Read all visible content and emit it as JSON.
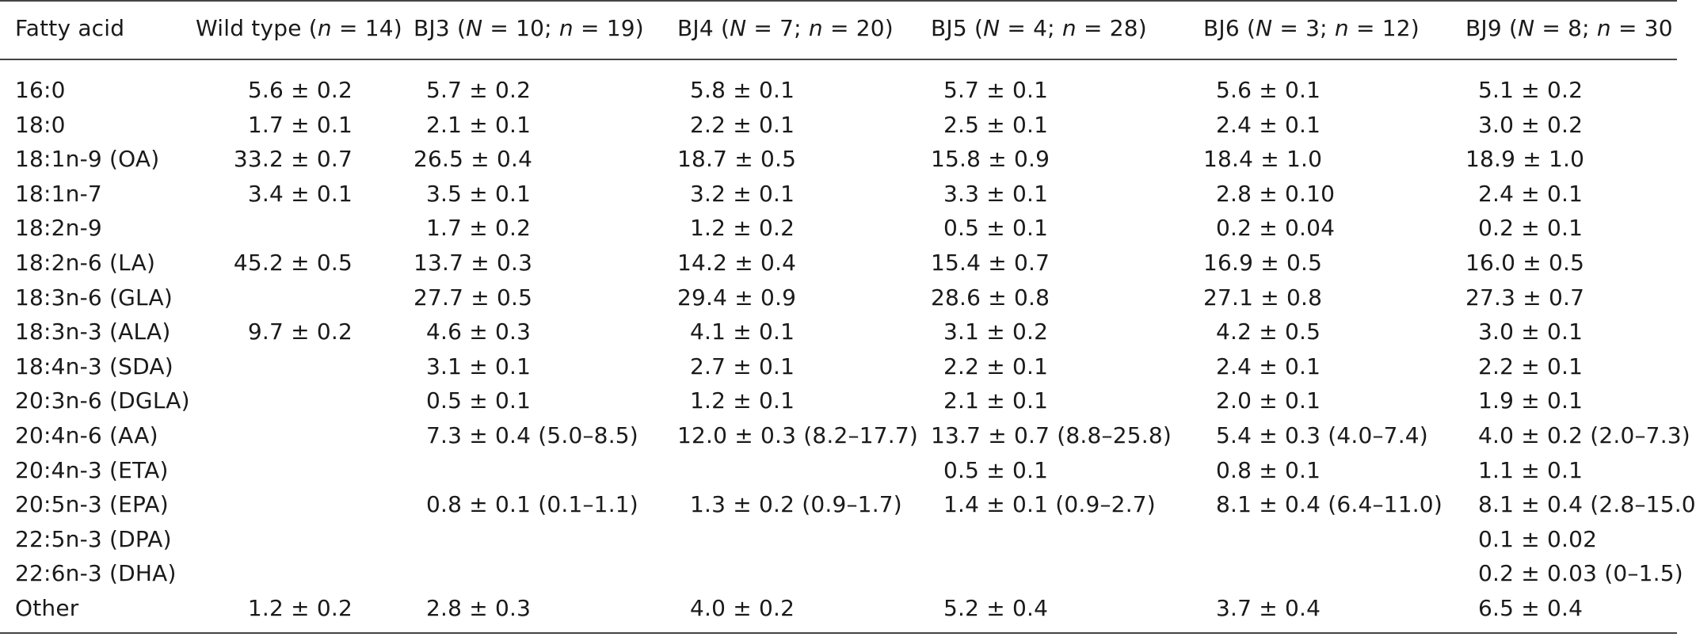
{
  "table": {
    "headers": [
      {
        "prefix": "Fatty acid",
        "parts": []
      },
      {
        "prefix": "Wild type (",
        "parts": [
          {
            "i": "n"
          },
          {
            "t": " = 14)"
          }
        ]
      },
      {
        "prefix": "BJ3 (",
        "parts": [
          {
            "i": "N"
          },
          {
            "t": " = 10; "
          },
          {
            "i": "n"
          },
          {
            "t": " = 19)"
          }
        ]
      },
      {
        "prefix": "BJ4 (",
        "parts": [
          {
            "i": "N"
          },
          {
            "t": " = 7; "
          },
          {
            "i": "n"
          },
          {
            "t": " = 20)"
          }
        ]
      },
      {
        "prefix": "BJ5 (",
        "parts": [
          {
            "i": "N"
          },
          {
            "t": " = 4; "
          },
          {
            "i": "n"
          },
          {
            "t": " = 28)"
          }
        ]
      },
      {
        "prefix": "BJ6 (",
        "parts": [
          {
            "i": "N"
          },
          {
            "t": " = 3; "
          },
          {
            "i": "n"
          },
          {
            "t": " = 12)"
          }
        ]
      },
      {
        "prefix": "BJ9 (",
        "parts": [
          {
            "i": "N"
          },
          {
            "t": " = 8; "
          },
          {
            "i": "n"
          },
          {
            "t": " = 30"
          }
        ]
      }
    ],
    "rows": [
      [
        "16:0",
        "5.6 ± 0.2",
        "5.7 ± 0.2",
        "5.8 ± 0.1",
        "5.7 ± 0.1",
        "5.6 ± 0.1",
        "5.1 ± 0.2"
      ],
      [
        "18:0",
        "1.7 ± 0.1",
        "2.1 ± 0.1",
        "2.2 ± 0.1",
        "2.5 ± 0.1",
        "2.4 ± 0.1",
        "3.0 ± 0.2"
      ],
      [
        "18:1n-9 (OA)",
        "33.2 ± 0.7",
        "26.5 ± 0.4",
        "18.7 ± 0.5",
        "15.8 ± 0.9",
        "18.4 ± 1.0",
        "18.9 ± 1.0"
      ],
      [
        "18:1n-7",
        "3.4 ± 0.1",
        "3.5 ± 0.1",
        "3.2 ± 0.1",
        "3.3 ± 0.1",
        "2.8 ± 0.10",
        "2.4 ± 0.1"
      ],
      [
        "18:2n-9",
        "",
        "1.7 ± 0.2",
        "1.2 ± 0.2",
        "0.5 ± 0.1",
        "0.2 ± 0.04",
        "0.2 ± 0.1"
      ],
      [
        "18:2n-6 (LA)",
        "45.2 ± 0.5",
        "13.7 ± 0.3",
        "14.2 ± 0.4",
        "15.4 ± 0.7",
        "16.9 ± 0.5",
        "16.0 ± 0.5"
      ],
      [
        "18:3n-6 (GLA)",
        "",
        "27.7 ± 0.5",
        "29.4 ± 0.9",
        "28.6 ± 0.8",
        "27.1 ± 0.8",
        "27.3 ± 0.7"
      ],
      [
        "18:3n-3 (ALA)",
        "9.7 ± 0.2",
        "4.6 ± 0.3",
        "4.1 ± 0.1",
        "3.1 ± 0.2",
        "4.2 ± 0.5",
        "3.0 ± 0.1"
      ],
      [
        "18:4n-3 (SDA)",
        "",
        "3.1 ± 0.1",
        "2.7 ± 0.1",
        "2.2 ± 0.1",
        "2.4 ± 0.1",
        "2.2 ± 0.1"
      ],
      [
        "20:3n-6 (DGLA)",
        "",
        "0.5 ± 0.1",
        "1.2 ± 0.1",
        "2.1 ± 0.1",
        "2.0 ± 0.1",
        "1.9 ± 0.1"
      ],
      [
        "20:4n-6 (AA)",
        "",
        "7.3 ± 0.4 (5.0–8.5)",
        "12.0 ± 0.3 (8.2–17.7)",
        "13.7 ± 0.7 (8.8–25.8)",
        "5.4 ± 0.3 (4.0–7.4)",
        "4.0 ± 0.2 (2.0–7.3)"
      ],
      [
        "20:4n-3 (ETA)",
        "",
        "",
        "",
        "0.5 ± 0.1",
        "0.8 ± 0.1",
        "1.1 ± 0.1"
      ],
      [
        "20:5n-3 (EPA)",
        "",
        "0.8 ± 0.1 (0.1–1.1)",
        "1.3 ± 0.2 (0.9–1.7)",
        "1.4 ± 0.1 (0.9–2.7)",
        "8.1 ± 0.4 (6.4–11.0)",
        "8.1 ± 0.4 (2.8–15.0"
      ],
      [
        "22:5n-3 (DPA)",
        "",
        "",
        "",
        "",
        "",
        "0.1 ± 0.02"
      ],
      [
        "22:6n-3 (DHA)",
        "",
        "",
        "",
        "",
        "",
        "0.2 ± 0.03 (0–1.5)"
      ],
      [
        "Other",
        "1.2 ± 0.2",
        "2.8 ± 0.3",
        "4.0 ± 0.2",
        "5.2 ± 0.4",
        "3.7 ± 0.4",
        "6.5 ± 0.4"
      ]
    ]
  }
}
